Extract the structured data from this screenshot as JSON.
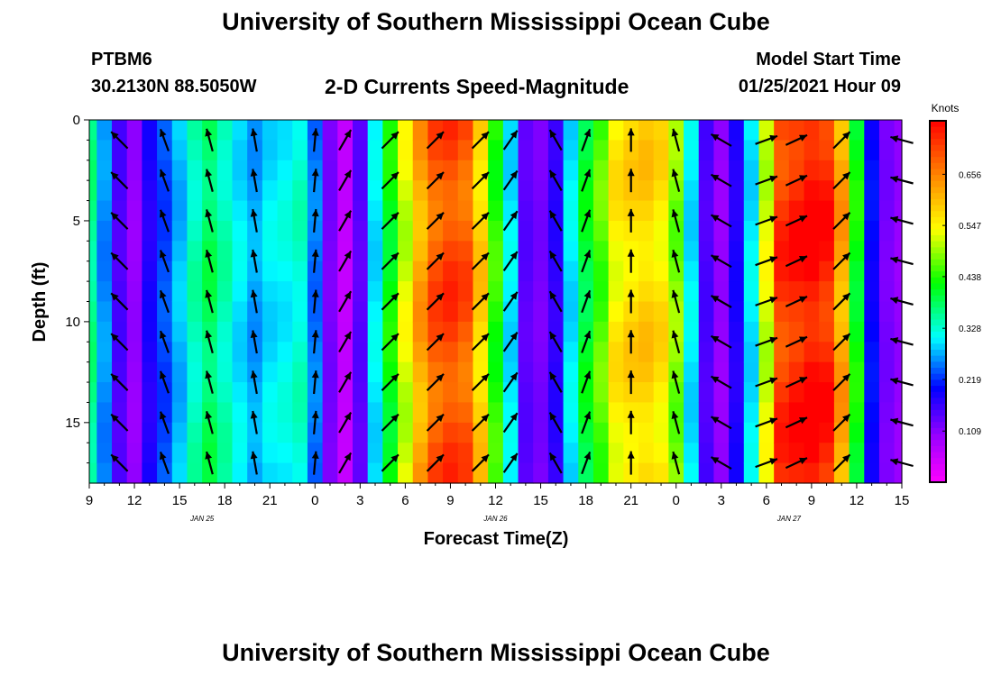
{
  "header": {
    "title": "University of Southern Mississippi Ocean Cube",
    "station_id": "PTBM6",
    "station_coords": "30.2130N 88.5050W",
    "plot_title": "2-D Currents Speed-Magnitude",
    "start_label": "Model Start Time",
    "start_value": "01/25/2021 Hour 09"
  },
  "footer": {
    "title": "University of Southern Mississippi Ocean Cube"
  },
  "chart_data": {
    "type": "heatmap",
    "title": "2-D Currents Speed-Magnitude",
    "xlabel": "Forecast Time(Z)",
    "ylabel": "Depth (ft)",
    "x_hours_since_start": [
      0,
      54
    ],
    "y_range_ft": [
      0,
      18
    ],
    "y_ticks": [
      0,
      5,
      10,
      15
    ],
    "x_ticks": [
      {
        "h": 0,
        "label": "9"
      },
      {
        "h": 3,
        "label": "12"
      },
      {
        "h": 6,
        "label": "15"
      },
      {
        "h": 9,
        "label": "18"
      },
      {
        "h": 12,
        "label": "21"
      },
      {
        "h": 15,
        "label": "0"
      },
      {
        "h": 18,
        "label": "3"
      },
      {
        "h": 21,
        "label": "6"
      },
      {
        "h": 24,
        "label": "9"
      },
      {
        "h": 27,
        "label": "12"
      },
      {
        "h": 30,
        "label": "15"
      },
      {
        "h": 33,
        "label": "18"
      },
      {
        "h": 36,
        "label": "21"
      },
      {
        "h": 39,
        "label": "0"
      },
      {
        "h": 42,
        "label": "3"
      },
      {
        "h": 45,
        "label": "6"
      },
      {
        "h": 48,
        "label": "9"
      },
      {
        "h": 51,
        "label": "12"
      },
      {
        "h": 54,
        "label": "15"
      }
    ],
    "date_labels": [
      {
        "h": 7.5,
        "label": "JAN 25"
      },
      {
        "h": 27,
        "label": "JAN 26"
      },
      {
        "h": 46.5,
        "label": "JAN 27"
      }
    ],
    "colorbar": {
      "unit": "Knots",
      "ticks": [
        "0.656",
        "0.547",
        "0.438",
        "0.328",
        "0.219",
        "0.109"
      ],
      "range": [
        0,
        0.77
      ]
    },
    "speed_knots_by_hour": [
      0.36,
      0.26,
      0.15,
      0.1,
      0.18,
      0.23,
      0.28,
      0.34,
      0.38,
      0.34,
      0.3,
      0.27,
      0.3,
      0.31,
      0.33,
      0.25,
      0.12,
      0.06,
      0.14,
      0.3,
      0.42,
      0.52,
      0.62,
      0.69,
      0.71,
      0.69,
      0.58,
      0.44,
      0.3,
      0.14,
      0.12,
      0.17,
      0.3,
      0.4,
      0.46,
      0.55,
      0.57,
      0.58,
      0.56,
      0.48,
      0.3,
      0.15,
      0.1,
      0.18,
      0.3,
      0.52,
      0.72,
      0.74,
      0.76,
      0.74,
      0.62,
      0.42,
      0.2,
      0.12,
      0.1
    ],
    "arrow_hours": [
      2,
      5,
      8,
      11,
      15,
      17,
      20,
      23,
      26,
      28,
      31,
      33,
      36,
      39,
      42,
      45,
      47,
      50,
      54
    ],
    "arrow_depths_ft": [
      1,
      3,
      5,
      7,
      9,
      11,
      13,
      15,
      17
    ],
    "arrow_directions_deg": [
      315,
      340,
      345,
      350,
      5,
      30,
      45,
      45,
      45,
      35,
      330,
      20,
      0,
      345,
      300,
      70,
      65,
      45,
      285
    ]
  },
  "colors": {
    "background": "#ffffff",
    "axis": "#000000",
    "arrow": "#000000"
  }
}
